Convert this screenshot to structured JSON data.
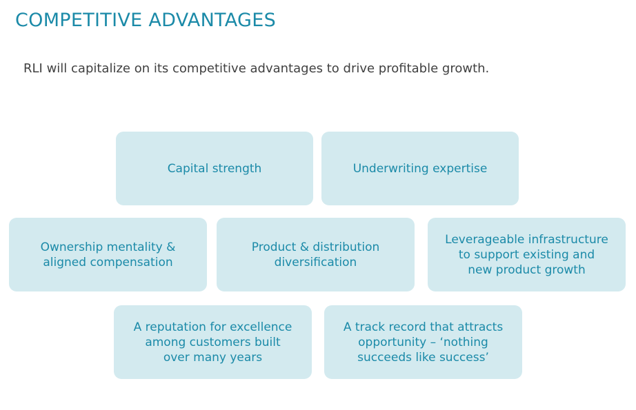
{
  "slide": {
    "title": "COMPETITIVE ADVANTAGES",
    "subtitle": "RLI will capitalize on its competitive advantages to drive profitable growth."
  },
  "advantages": [
    {
      "label": "Capital strength"
    },
    {
      "label": "Underwriting expertise"
    },
    {
      "label": "Ownership mentality &\naligned compensation"
    },
    {
      "label": "Product & distribution\ndiversification"
    },
    {
      "label": "Leverageable infrastructure\nto support existing and\nnew product growth"
    },
    {
      "label": "A reputation for excellence\namong customers built\nover many years"
    },
    {
      "label": "A track record that attracts\nopportunity – ‘nothing\nsucceeds like success’"
    }
  ],
  "colors": {
    "accent": "#1b8aa8",
    "box_fill": "#d3eaef",
    "body_text": "#404040"
  }
}
